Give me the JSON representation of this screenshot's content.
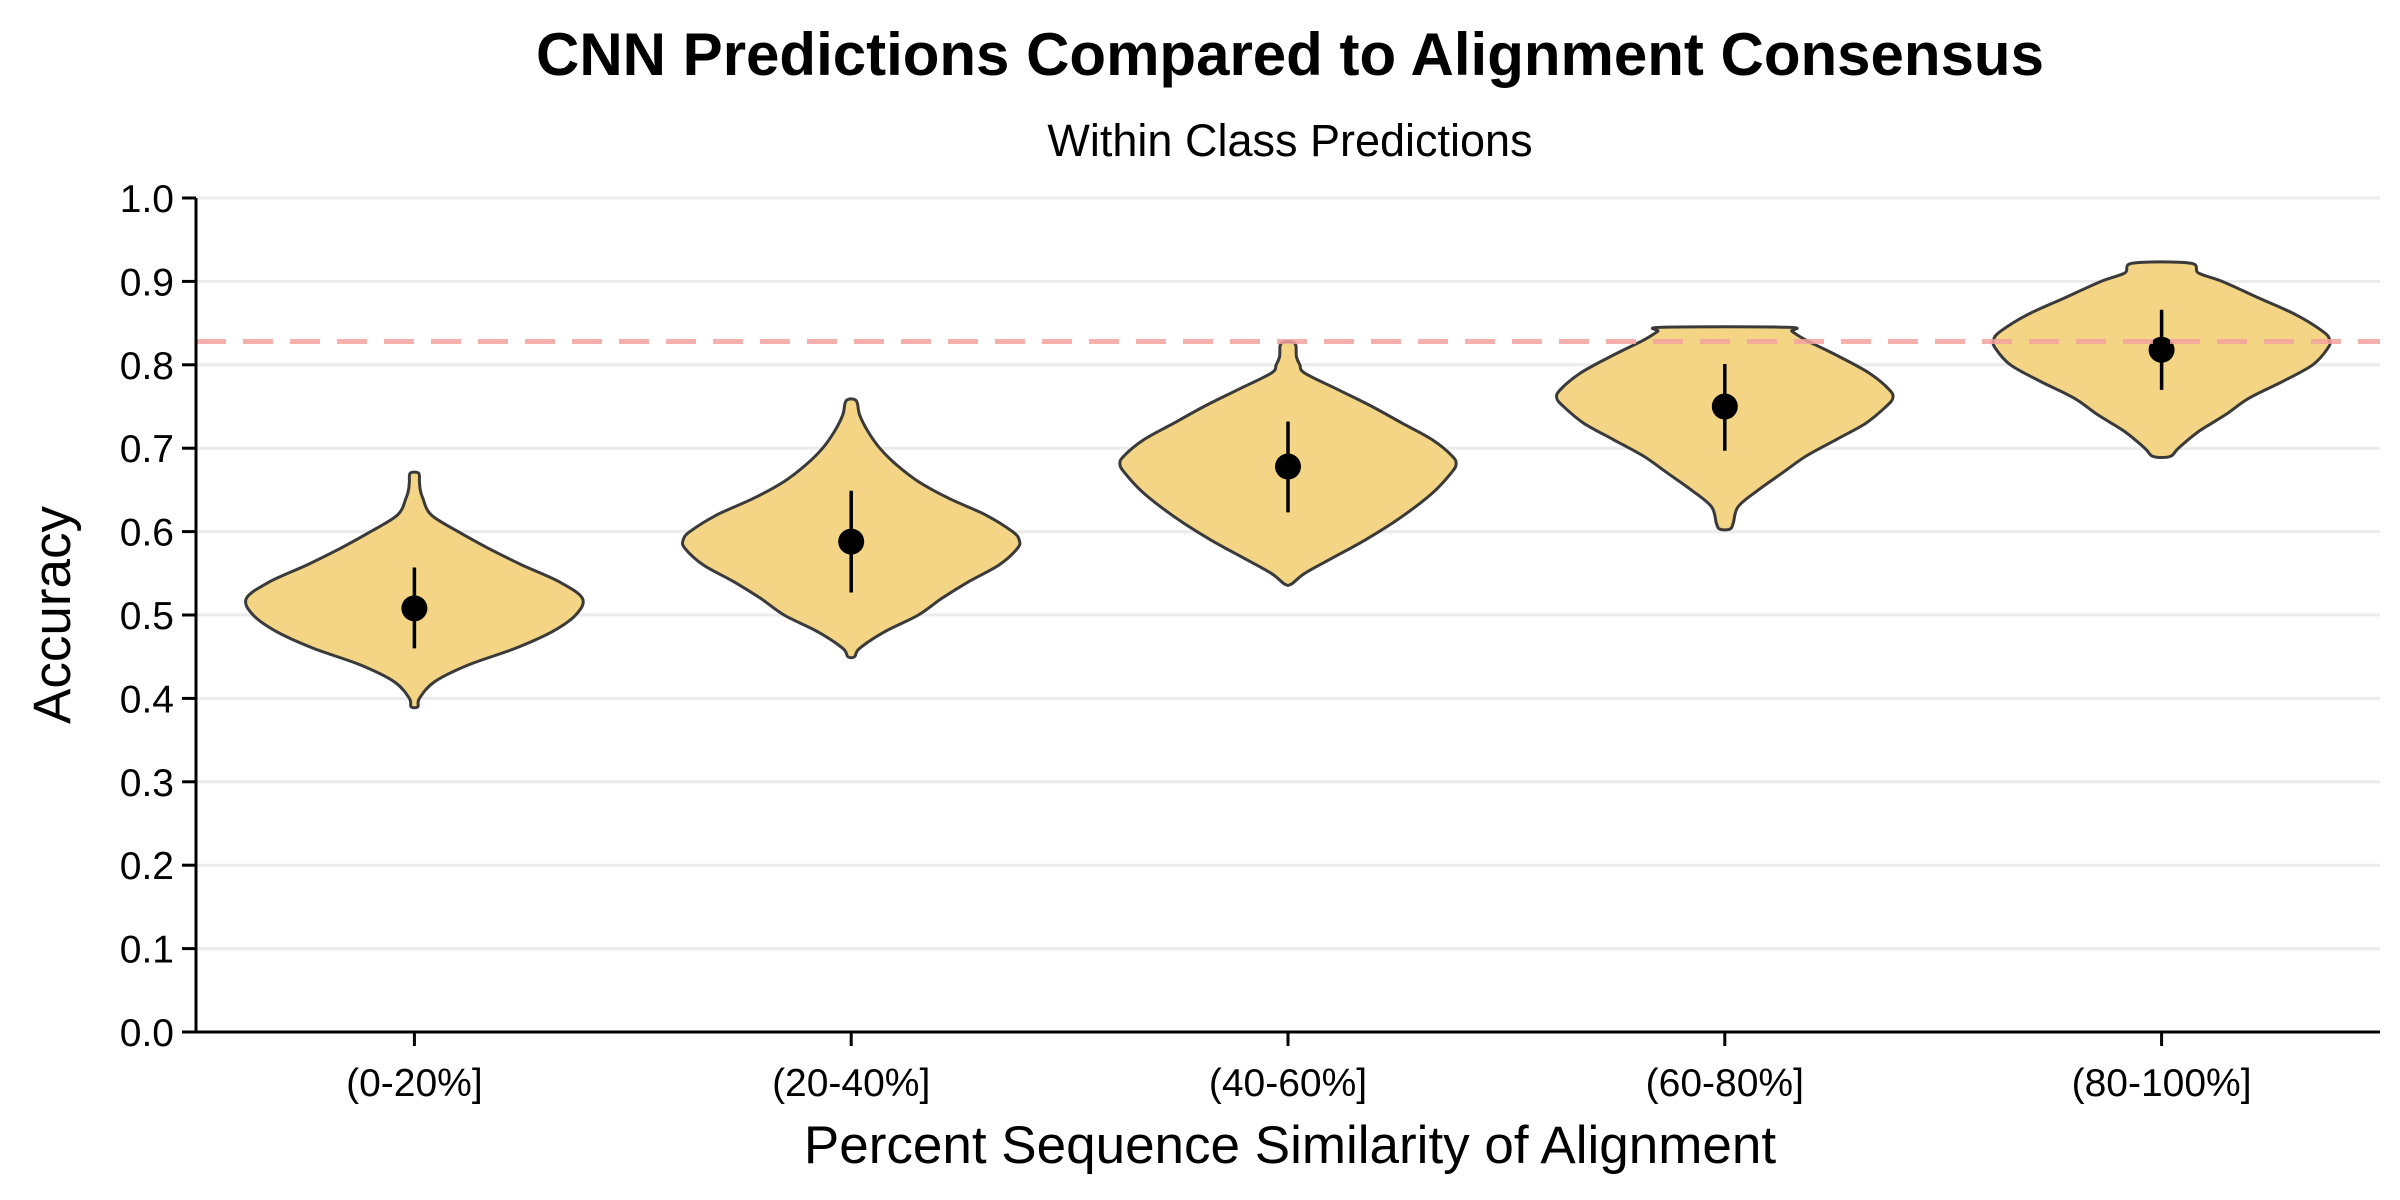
{
  "chart_data": {
    "type": "violin",
    "title": "CNN Predictions Compared to Alignment Consensus",
    "subtitle": "Within Class Predictions",
    "xlabel": "Percent Sequence Similarity of Alignment",
    "ylabel": "Accuracy",
    "ylim": [
      0,
      1
    ],
    "y_ticks": [
      "0.0",
      "0.1",
      "0.2",
      "0.3",
      "0.4",
      "0.5",
      "0.6",
      "0.7",
      "0.8",
      "0.9",
      "1.0"
    ],
    "categories": [
      "(0-20%]",
      "(20-40%]",
      "(40-60%]",
      "(60-80%]",
      "(80-100%]"
    ],
    "reference_line": {
      "y": 0.828,
      "style": "dashed",
      "color": "#f4a3a0"
    },
    "grid": {
      "horizontal": true,
      "vertical": false,
      "color": "#ebebeb"
    },
    "colors": {
      "fill": "#f3d585",
      "outline": "#3a3a3a",
      "point": "#000000"
    },
    "violins": [
      {
        "category": "(0-20%]",
        "min": 0.39,
        "max": 0.67,
        "mean": 0.508,
        "sd_low": 0.46,
        "sd_high": 0.557,
        "profile": [
          [
            0.39,
            0.02
          ],
          [
            0.4,
            0.03
          ],
          [
            0.42,
            0.12
          ],
          [
            0.44,
            0.32
          ],
          [
            0.46,
            0.6
          ],
          [
            0.48,
            0.82
          ],
          [
            0.5,
            0.96
          ],
          [
            0.52,
            1.0
          ],
          [
            0.54,
            0.86
          ],
          [
            0.56,
            0.64
          ],
          [
            0.58,
            0.44
          ],
          [
            0.6,
            0.26
          ],
          [
            0.62,
            0.1
          ],
          [
            0.64,
            0.05
          ],
          [
            0.65,
            0.035
          ],
          [
            0.66,
            0.03
          ],
          [
            0.67,
            0.025
          ]
        ]
      },
      {
        "category": "(20-40%]",
        "min": 0.45,
        "max": 0.757,
        "mean": 0.588,
        "sd_low": 0.527,
        "sd_high": 0.649,
        "profile": [
          [
            0.45,
            0.02
          ],
          [
            0.46,
            0.05
          ],
          [
            0.48,
            0.2
          ],
          [
            0.5,
            0.4
          ],
          [
            0.52,
            0.54
          ],
          [
            0.54,
            0.7
          ],
          [
            0.56,
            0.88
          ],
          [
            0.58,
            0.99
          ],
          [
            0.59,
            1.0
          ],
          [
            0.6,
            0.96
          ],
          [
            0.62,
            0.8
          ],
          [
            0.64,
            0.58
          ],
          [
            0.66,
            0.4
          ],
          [
            0.68,
            0.27
          ],
          [
            0.7,
            0.17
          ],
          [
            0.72,
            0.1
          ],
          [
            0.74,
            0.05
          ],
          [
            0.757,
            0.03
          ]
        ]
      },
      {
        "category": "(40-60%]",
        "min": 0.537,
        "max": 0.826,
        "mean": 0.678,
        "sd_low": 0.623,
        "sd_high": 0.732,
        "profile": [
          [
            0.537,
            0.02
          ],
          [
            0.55,
            0.1
          ],
          [
            0.57,
            0.28
          ],
          [
            0.59,
            0.46
          ],
          [
            0.61,
            0.62
          ],
          [
            0.63,
            0.76
          ],
          [
            0.65,
            0.88
          ],
          [
            0.67,
            0.97
          ],
          [
            0.68,
            1.0
          ],
          [
            0.69,
            0.98
          ],
          [
            0.71,
            0.86
          ],
          [
            0.73,
            0.68
          ],
          [
            0.75,
            0.5
          ],
          [
            0.77,
            0.3
          ],
          [
            0.79,
            0.1
          ],
          [
            0.8,
            0.07
          ],
          [
            0.81,
            0.05
          ],
          [
            0.826,
            0.04
          ]
        ]
      },
      {
        "category": "(60-80%]",
        "min": 0.603,
        "max": 0.845,
        "mean": 0.75,
        "sd_low": 0.697,
        "sd_high": 0.801,
        "profile": [
          [
            0.603,
            0.03
          ],
          [
            0.61,
            0.05
          ],
          [
            0.63,
            0.08
          ],
          [
            0.65,
            0.2
          ],
          [
            0.67,
            0.34
          ],
          [
            0.69,
            0.48
          ],
          [
            0.71,
            0.66
          ],
          [
            0.73,
            0.84
          ],
          [
            0.75,
            0.96
          ],
          [
            0.76,
            1.0
          ],
          [
            0.77,
            0.98
          ],
          [
            0.79,
            0.86
          ],
          [
            0.81,
            0.68
          ],
          [
            0.83,
            0.48
          ],
          [
            0.84,
            0.4
          ],
          [
            0.845,
            0.37
          ]
        ]
      },
      {
        "category": "(80-100%]",
        "min": 0.69,
        "max": 0.922,
        "mean": 0.818,
        "sd_low": 0.77,
        "sd_high": 0.866,
        "profile": [
          [
            0.69,
            0.05
          ],
          [
            0.7,
            0.1
          ],
          [
            0.72,
            0.22
          ],
          [
            0.74,
            0.38
          ],
          [
            0.76,
            0.52
          ],
          [
            0.78,
            0.72
          ],
          [
            0.8,
            0.9
          ],
          [
            0.82,
            0.99
          ],
          [
            0.83,
            1.0
          ],
          [
            0.84,
            0.96
          ],
          [
            0.86,
            0.8
          ],
          [
            0.88,
            0.58
          ],
          [
            0.9,
            0.36
          ],
          [
            0.91,
            0.22
          ],
          [
            0.922,
            0.17
          ]
        ]
      }
    ]
  }
}
